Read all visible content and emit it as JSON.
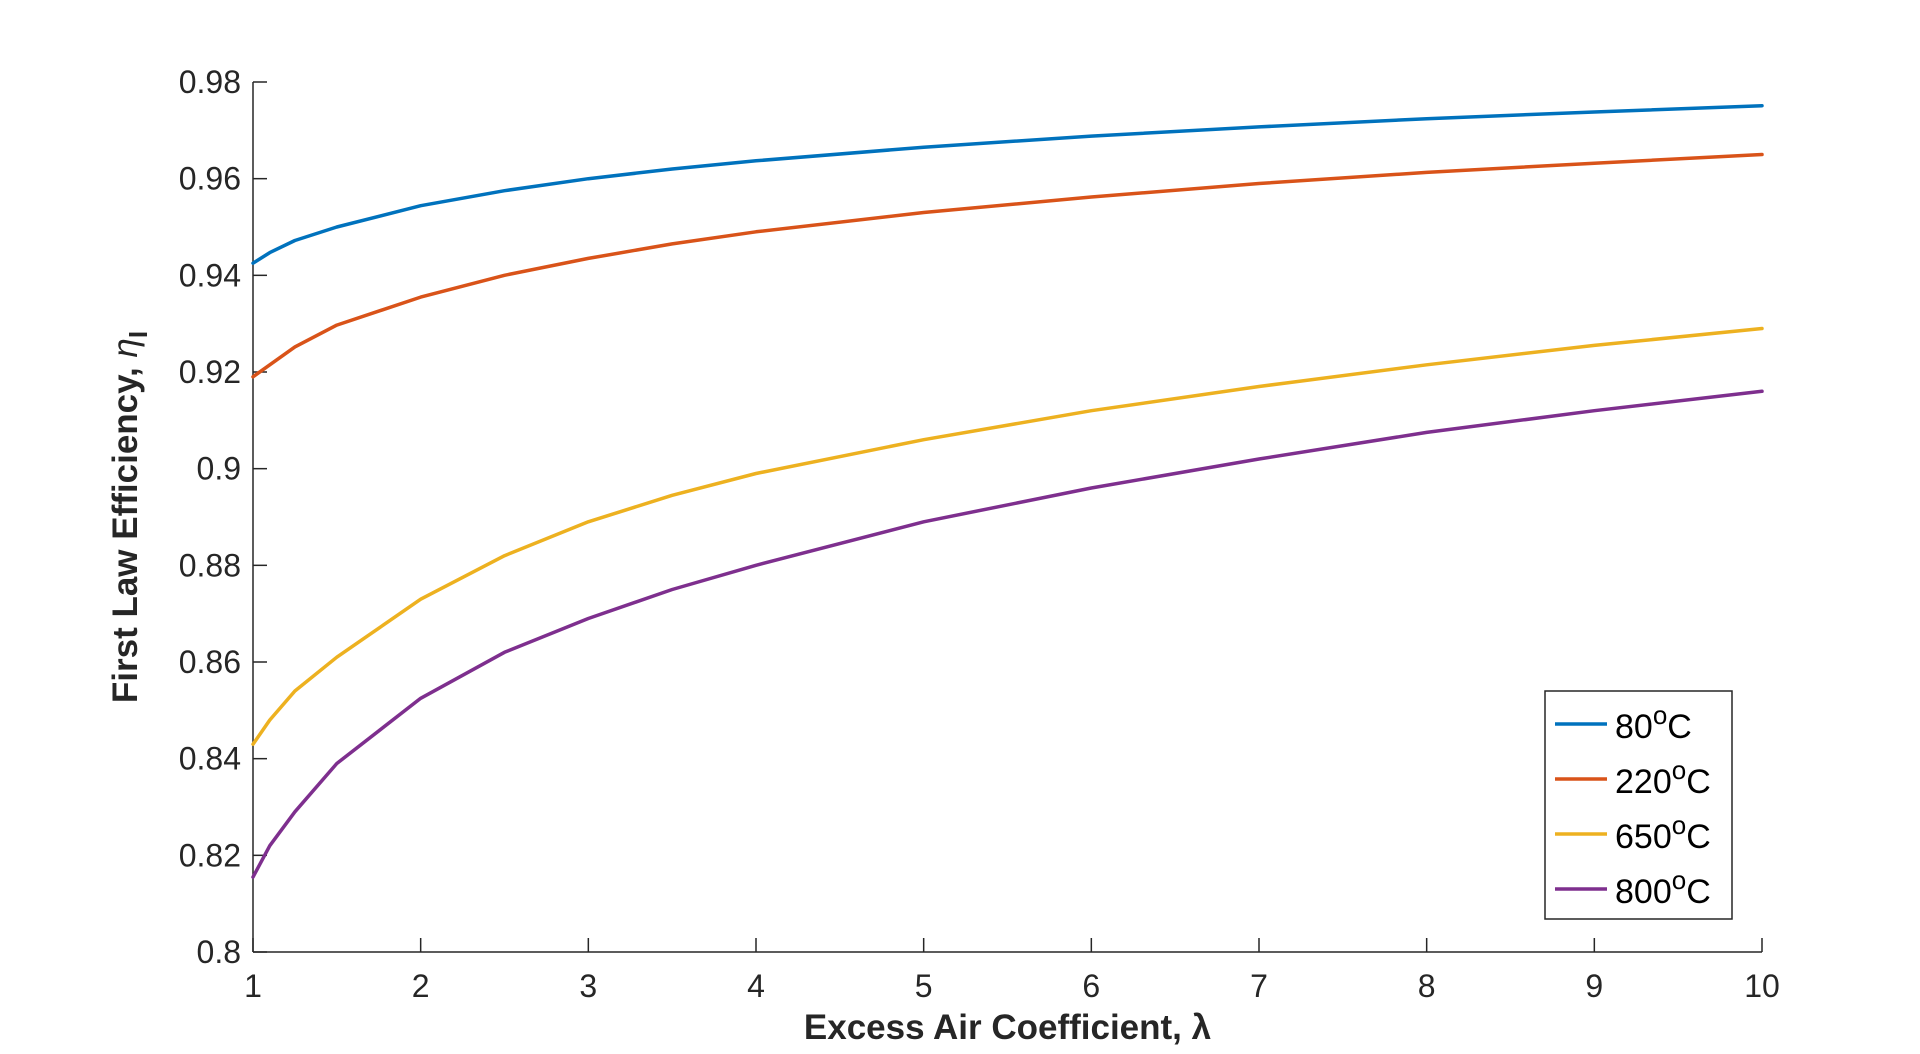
{
  "chart_data": {
    "type": "line",
    "xlabel": "Excess Air Coefficient, λ",
    "ylabel_main": "First Law Efficiency, ",
    "ylabel_symbol": "η",
    "ylabel_sub": "I",
    "xlim": [
      1,
      10
    ],
    "ylim": [
      0.8,
      0.98
    ],
    "xticks": [
      1,
      2,
      3,
      4,
      5,
      6,
      7,
      8,
      9,
      10
    ],
    "yticks": [
      0.8,
      0.82,
      0.84,
      0.86,
      0.88,
      0.9,
      0.92,
      0.94,
      0.96,
      0.98
    ],
    "ytick_labels": [
      "0.8",
      "0.82",
      "0.84",
      "0.86",
      "0.88",
      "0.9",
      "0.92",
      "0.94",
      "0.96",
      "0.98"
    ],
    "grid": false,
    "legend_position": "bottom-right",
    "x": [
      1,
      1.1,
      1.25,
      1.5,
      2,
      2.5,
      3,
      3.5,
      4,
      5,
      6,
      7,
      8,
      9,
      10
    ],
    "series": [
      {
        "name": "80",
        "unit": "°C",
        "superscript": "o",
        "unit_letter": "C",
        "color": "#0072BD",
        "values": [
          0.9425,
          0.9447,
          0.9472,
          0.95,
          0.9544,
          0.9575,
          0.96,
          0.962,
          0.9637,
          0.9665,
          0.9688,
          0.9707,
          0.9724,
          0.9738,
          0.9751
        ]
      },
      {
        "name": "220",
        "unit": "°C",
        "superscript": "o",
        "unit_letter": "C",
        "color": "#D95319",
        "values": [
          0.919,
          0.9215,
          0.9252,
          0.9297,
          0.9355,
          0.94,
          0.9435,
          0.9465,
          0.949,
          0.953,
          0.9562,
          0.959,
          0.9613,
          0.9632,
          0.965
        ]
      },
      {
        "name": "650",
        "unit": "°C",
        "superscript": "o",
        "unit_letter": "C",
        "color": "#EDB120",
        "values": [
          0.843,
          0.848,
          0.854,
          0.861,
          0.873,
          0.882,
          0.889,
          0.8945,
          0.899,
          0.906,
          0.912,
          0.917,
          0.9215,
          0.9255,
          0.929
        ]
      },
      {
        "name": "800",
        "unit": "°C",
        "superscript": "o",
        "unit_letter": "C",
        "color": "#7E2F8E",
        "values": [
          0.8155,
          0.822,
          0.829,
          0.839,
          0.8525,
          0.862,
          0.869,
          0.875,
          0.88,
          0.889,
          0.896,
          0.902,
          0.9075,
          0.912,
          0.916
        ]
      }
    ]
  }
}
